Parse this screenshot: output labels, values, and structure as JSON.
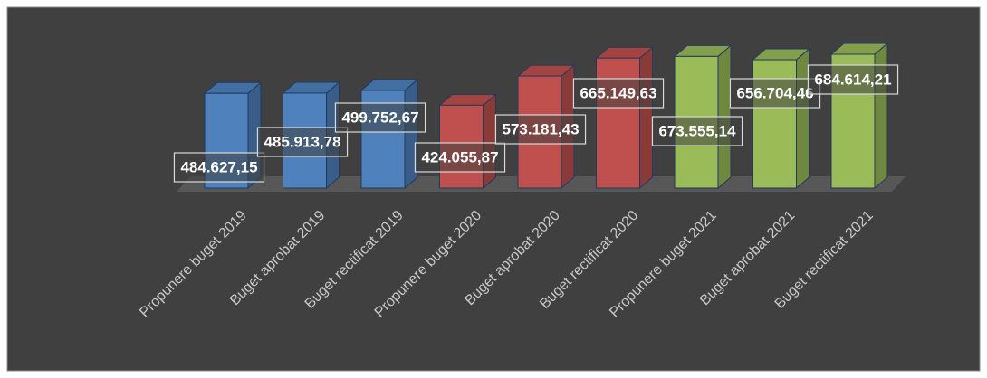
{
  "chart_data": {
    "type": "bar3d",
    "categories": [
      "Propunere buget 2019",
      "Buget aprobat 2019",
      "Buget rectificat 2019",
      "Propunere buget 2020",
      "Buget aprobat 2020",
      "Buget rectificat 2020",
      "Propunere buget 2021",
      "Buget aprobat 2021",
      "Buget rectificat 2021"
    ],
    "values": [
      484627.15,
      485913.78,
      499752.67,
      424055.87,
      573181.43,
      665149.63,
      673555.14,
      656704.46,
      684614.21
    ],
    "value_labels": [
      "484.627,15",
      "485.913,78",
      "499.752,67",
      "424.055,87",
      "573.181,43",
      "665.149,63",
      "673.555,14",
      "656.704,46",
      "684.614,21"
    ],
    "colors": [
      "#4f81bd",
      "#4f81bd",
      "#4f81bd",
      "#c0504d",
      "#c0504d",
      "#c0504d",
      "#9bbb59",
      "#9bbb59",
      "#9bbb59"
    ]
  }
}
